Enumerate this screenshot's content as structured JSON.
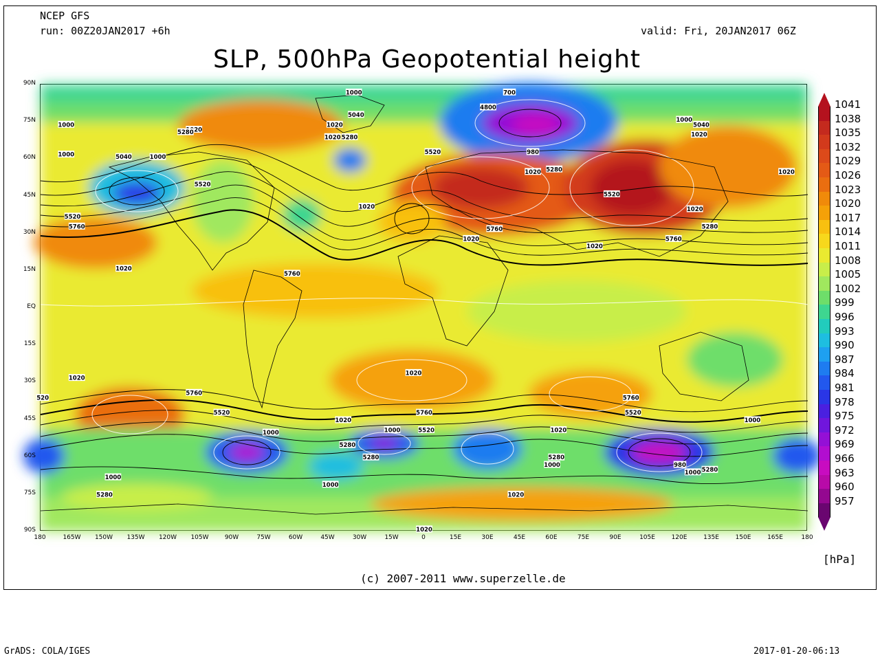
{
  "header": {
    "model": "NCEP GFS",
    "run": "run: 00Z20JAN2017 +6h",
    "valid": "valid: Fri, 20JAN2017 06Z",
    "title": "SLP, 500hPa Geopotential height"
  },
  "axes": {
    "lat_labels": [
      "90N",
      "75N",
      "60N",
      "45N",
      "30N",
      "15N",
      "EQ",
      "15S",
      "30S",
      "45S",
      "60S",
      "75S",
      "90S"
    ],
    "lon_labels": [
      "180",
      "165W",
      "150W",
      "135W",
      "120W",
      "105W",
      "90W",
      "75W",
      "60W",
      "45W",
      "30W",
      "15W",
      "0",
      "15E",
      "30E",
      "45E",
      "60E",
      "75E",
      "90E",
      "105E",
      "120E",
      "135E",
      "150E",
      "165E",
      "180"
    ]
  },
  "colorbar": {
    "unit": "[hPa]",
    "levels": [
      "1041",
      "1038",
      "1035",
      "1032",
      "1029",
      "1026",
      "1023",
      "1020",
      "1017",
      "1014",
      "1011",
      "1008",
      "1005",
      "1002",
      "999",
      "996",
      "993",
      "990",
      "987",
      "984",
      "981",
      "978",
      "975",
      "972",
      "969",
      "966",
      "963",
      "960",
      "957"
    ],
    "colors": [
      "#b4121e",
      "#c42a1e",
      "#d23a1c",
      "#dc4a1a",
      "#e45a16",
      "#ea6e10",
      "#f08a0a",
      "#f5a108",
      "#f8c010",
      "#f7d81c",
      "#eaea30",
      "#c8ee4a",
      "#a0e85e",
      "#6ede6a",
      "#3ed690",
      "#22ccbc",
      "#1ebee0",
      "#1ea0f0",
      "#1e7cf0",
      "#2258ee",
      "#2a36e6",
      "#4a20e0",
      "#7016dc",
      "#9410d6",
      "#b20ed0",
      "#c80cc0",
      "#b80aa8",
      "#940890",
      "#6a0670"
    ]
  },
  "map_labels": [
    {
      "text": "1020",
      "lat": 72,
      "lon": -108
    },
    {
      "text": "1000",
      "lat": 74,
      "lon": -168
    },
    {
      "text": "1000",
      "lat": 62,
      "lon": -168
    },
    {
      "text": "5040",
      "lat": 61,
      "lon": -141
    },
    {
      "text": "5280",
      "lat": 71,
      "lon": -112
    },
    {
      "text": "1000",
      "lat": 61,
      "lon": -125
    },
    {
      "text": "5520",
      "lat": 50,
      "lon": -104
    },
    {
      "text": "5520",
      "lat": 37,
      "lon": -165
    },
    {
      "text": "5760",
      "lat": 33,
      "lon": -163
    },
    {
      "text": "5760",
      "lat": 14,
      "lon": -62
    },
    {
      "text": "1020",
      "lat": 16,
      "lon": -141
    },
    {
      "text": "1020",
      "lat": 74,
      "lon": -42
    },
    {
      "text": "5040",
      "lat": 78,
      "lon": -32
    },
    {
      "text": "1000",
      "lat": 87,
      "lon": -33
    },
    {
      "text": "5280",
      "lat": 69,
      "lon": -35
    },
    {
      "text": "1020",
      "lat": 69,
      "lon": -43
    },
    {
      "text": "1020",
      "lat": 41,
      "lon": -27
    },
    {
      "text": "5520",
      "lat": 63,
      "lon": 4
    },
    {
      "text": "1020",
      "lat": 28,
      "lon": 22
    },
    {
      "text": "5760",
      "lat": 32,
      "lon": 33
    },
    {
      "text": "700",
      "lat": 87,
      "lon": 40
    },
    {
      "text": "4800",
      "lat": 81,
      "lon": 30
    },
    {
      "text": "980",
      "lat": 63,
      "lon": 51
    },
    {
      "text": "1020",
      "lat": 55,
      "lon": 51
    },
    {
      "text": "5280",
      "lat": 56,
      "lon": 61
    },
    {
      "text": "5520",
      "lat": 46,
      "lon": 88
    },
    {
      "text": "1020",
      "lat": 25,
      "lon": 80
    },
    {
      "text": "1000",
      "lat": 76,
      "lon": 122
    },
    {
      "text": "5040",
      "lat": 74,
      "lon": 130
    },
    {
      "text": "1020",
      "lat": 70,
      "lon": 129
    },
    {
      "text": "1020",
      "lat": 40,
      "lon": 127
    },
    {
      "text": "5280",
      "lat": 33,
      "lon": 134
    },
    {
      "text": "5760",
      "lat": 28,
      "lon": 117
    },
    {
      "text": "1020",
      "lat": 55,
      "lon": 170
    },
    {
      "text": "1020",
      "lat": -28,
      "lon": -163
    },
    {
      "text": "5760",
      "lat": -34,
      "lon": -108
    },
    {
      "text": "5520",
      "lat": -42,
      "lon": -95
    },
    {
      "text": "1000",
      "lat": -50,
      "lon": -72
    },
    {
      "text": "1020",
      "lat": -26,
      "lon": -5
    },
    {
      "text": "1020",
      "lat": -45,
      "lon": -38
    },
    {
      "text": "5280",
      "lat": -55,
      "lon": -36
    },
    {
      "text": "1000",
      "lat": -49,
      "lon": -15
    },
    {
      "text": "5520",
      "lat": -49,
      "lon": 1
    },
    {
      "text": "5760",
      "lat": -42,
      "lon": 0
    },
    {
      "text": "5280",
      "lat": -60,
      "lon": -25
    },
    {
      "text": "1000",
      "lat": -71,
      "lon": -44
    },
    {
      "text": "1020",
      "lat": -75,
      "lon": 43
    },
    {
      "text": "1020",
      "lat": -49,
      "lon": 63
    },
    {
      "text": "5280",
      "lat": -60,
      "lon": 62
    },
    {
      "text": "1000",
      "lat": -63,
      "lon": 60
    },
    {
      "text": "5760",
      "lat": -36,
      "lon": 97
    },
    {
      "text": "5520",
      "lat": -42,
      "lon": 98
    },
    {
      "text": "980",
      "lat": -63,
      "lon": 120
    },
    {
      "text": "1000",
      "lat": -66,
      "lon": 126
    },
    {
      "text": "5280",
      "lat": -65,
      "lon": 134
    },
    {
      "text": "1000",
      "lat": -45,
      "lon": 154
    },
    {
      "text": "1000",
      "lat": -68,
      "lon": -146
    },
    {
      "text": "5280",
      "lat": -75,
      "lon": -150
    },
    {
      "text": "1020",
      "lat": -89,
      "lon": 0
    },
    {
      "text": "520",
      "lat": -36,
      "lon": -179
    }
  ],
  "footer": {
    "copyright": "(c) 2007-2011 www.superzelle.de",
    "software": "GrADS: COLA/IGES",
    "timestamp": "2017-01-20-06:13"
  }
}
